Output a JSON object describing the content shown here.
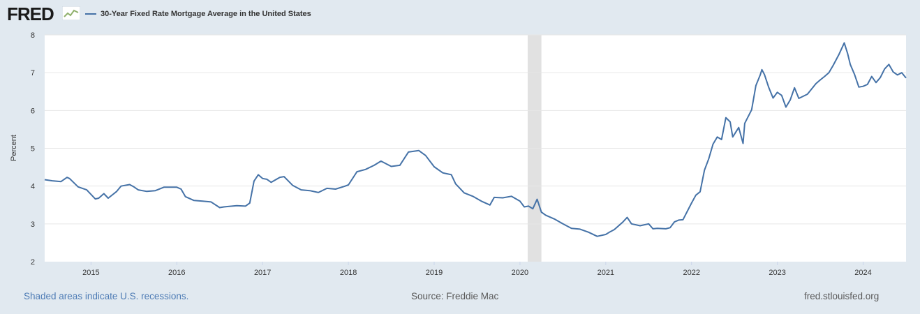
{
  "logo": {
    "text": "FRED"
  },
  "legend": {
    "label": "30-Year Fixed Rate Mortgage Average in the United States",
    "color": "#4572a7"
  },
  "footer": {
    "recession_note": "Shaded areas indicate U.S. recessions.",
    "source": "Source: Freddie Mac",
    "site": "fred.stlouisfed.org"
  },
  "chart_data": {
    "type": "line",
    "title": "",
    "xlabel": "",
    "ylabel": "Percent",
    "ylim": [
      2,
      8
    ],
    "xlim": [
      2014.46,
      2024.5
    ],
    "y_ticks": [
      2,
      3,
      4,
      5,
      6,
      7,
      8
    ],
    "x_ticks": [
      2015,
      2016,
      2017,
      2018,
      2019,
      2020,
      2021,
      2022,
      2023,
      2024
    ],
    "grid": true,
    "legend_position": "top-left",
    "recessions": [
      [
        2020.09,
        2020.25
      ]
    ],
    "series": [
      {
        "color": "#4572a7",
        "x": [
          2014.46,
          2014.55,
          2014.65,
          2014.72,
          2014.75,
          2014.85,
          2014.95,
          2015.05,
          2015.09,
          2015.15,
          2015.2,
          2015.3,
          2015.35,
          2015.45,
          2015.5,
          2015.55,
          2015.65,
          2015.75,
          2015.85,
          2015.9,
          2016.0,
          2016.05,
          2016.1,
          2016.2,
          2016.3,
          2016.4,
          2016.5,
          2016.55,
          2016.6,
          2016.7,
          2016.8,
          2016.85,
          2016.9,
          2016.95,
          2017.0,
          2017.05,
          2017.1,
          2017.2,
          2017.25,
          2017.35,
          2017.45,
          2017.55,
          2017.65,
          2017.75,
          2017.85,
          2017.95,
          2018.0,
          2018.1,
          2018.2,
          2018.3,
          2018.38,
          2018.5,
          2018.6,
          2018.7,
          2018.82,
          2018.9,
          2019.0,
          2019.1,
          2019.2,
          2019.25,
          2019.35,
          2019.45,
          2019.55,
          2019.65,
          2019.7,
          2019.8,
          2019.9,
          2020.0,
          2020.05,
          2020.1,
          2020.15,
          2020.2,
          2020.25,
          2020.3,
          2020.4,
          2020.5,
          2020.6,
          2020.7,
          2020.8,
          2020.9,
          2021.0,
          2021.05,
          2021.1,
          2021.2,
          2021.25,
          2021.3,
          2021.4,
          2021.5,
          2021.55,
          2021.6,
          2021.7,
          2021.75,
          2021.8,
          2021.85,
          2021.9,
          2022.0,
          2022.05,
          2022.1,
          2022.15,
          2022.2,
          2022.25,
          2022.3,
          2022.35,
          2022.4,
          2022.45,
          2022.48,
          2022.55,
          2022.6,
          2022.62,
          2022.7,
          2022.75,
          2022.8,
          2022.82,
          2022.85,
          2022.9,
          2022.95,
          2023.0,
          2023.05,
          2023.1,
          2023.15,
          2023.2,
          2023.25,
          2023.35,
          2023.45,
          2023.5,
          2023.55,
          2023.6,
          2023.65,
          2023.72,
          2023.78,
          2023.82,
          2023.85,
          2023.9,
          2023.95,
          2024.0,
          2024.05,
          2024.1,
          2024.15,
          2024.2,
          2024.25,
          2024.3,
          2024.35,
          2024.4,
          2024.45,
          2024.5
        ],
        "values": [
          4.17,
          4.14,
          4.12,
          4.23,
          4.2,
          3.98,
          3.9,
          3.66,
          3.68,
          3.8,
          3.68,
          3.86,
          4.0,
          4.04,
          3.98,
          3.9,
          3.86,
          3.88,
          3.97,
          3.97,
          3.97,
          3.92,
          3.72,
          3.62,
          3.6,
          3.58,
          3.43,
          3.45,
          3.46,
          3.48,
          3.47,
          3.55,
          4.13,
          4.3,
          4.2,
          4.18,
          4.1,
          4.23,
          4.25,
          4.02,
          3.9,
          3.88,
          3.83,
          3.94,
          3.92,
          3.99,
          4.03,
          4.38,
          4.44,
          4.55,
          4.66,
          4.52,
          4.55,
          4.9,
          4.94,
          4.81,
          4.51,
          4.35,
          4.3,
          4.06,
          3.82,
          3.73,
          3.6,
          3.5,
          3.7,
          3.69,
          3.73,
          3.6,
          3.45,
          3.47,
          3.4,
          3.65,
          3.31,
          3.23,
          3.13,
          3.0,
          2.88,
          2.86,
          2.78,
          2.67,
          2.72,
          2.79,
          2.85,
          3.05,
          3.17,
          3.0,
          2.95,
          3.0,
          2.87,
          2.88,
          2.87,
          2.9,
          3.05,
          3.1,
          3.11,
          3.55,
          3.76,
          3.85,
          4.42,
          4.72,
          5.11,
          5.3,
          5.23,
          5.81,
          5.7,
          5.3,
          5.55,
          5.13,
          5.66,
          6.02,
          6.66,
          6.94,
          7.08,
          6.95,
          6.61,
          6.33,
          6.48,
          6.4,
          6.09,
          6.28,
          6.6,
          6.32,
          6.43,
          6.71,
          6.81,
          6.9,
          7.0,
          7.19,
          7.49,
          7.79,
          7.5,
          7.22,
          6.95,
          6.62,
          6.64,
          6.69,
          6.9,
          6.74,
          6.87,
          7.1,
          7.22,
          7.02,
          6.94,
          7.0,
          6.86
        ]
      }
    ]
  }
}
